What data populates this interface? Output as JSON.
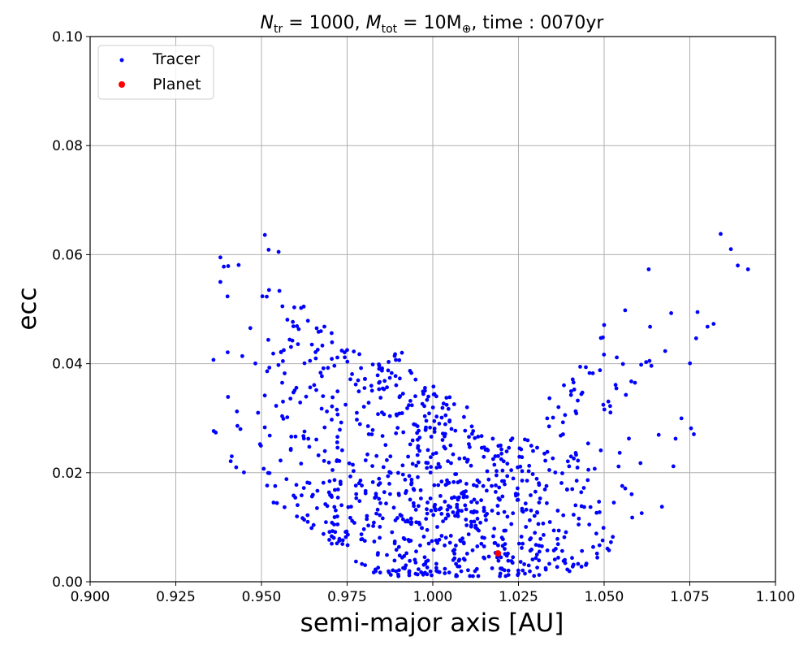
{
  "chart_data": {
    "type": "scatter",
    "title": "N_tr = 1000, M_tot = 10M⊕, time : 0070yr",
    "title_parts": {
      "n": "N",
      "n_sub": "tr",
      "eq1": " = 1000, ",
      "m": "M",
      "m_sub": "tot",
      "eq2": " = 10M",
      "earth": "⊕",
      "rest": ", time : 0070yr"
    },
    "xlabel": "semi-major axis [AU]",
    "ylabel": "ecc",
    "xlim": [
      0.9,
      1.1
    ],
    "ylim": [
      0.0,
      0.1
    ],
    "xticks": [
      "0.900",
      "0.925",
      "0.950",
      "0.975",
      "1.000",
      "1.025",
      "1.050",
      "1.075",
      "1.100"
    ],
    "yticks": [
      "0.00",
      "0.02",
      "0.04",
      "0.06",
      "0.08",
      "0.10"
    ],
    "grid": true,
    "legend_position": "top-left",
    "series": [
      {
        "name": "Tracer",
        "color": "#0000ff",
        "count": 1000,
        "envelope": [
          {
            "a": 0.936,
            "e_max": 0.041
          },
          {
            "a": 0.94,
            "e_max": 0.06
          },
          {
            "a": 0.95,
            "e_max": 0.064
          },
          {
            "a": 0.96,
            "e_max": 0.052
          },
          {
            "a": 0.97,
            "e_max": 0.046
          },
          {
            "a": 0.98,
            "e_max": 0.042
          },
          {
            "a": 0.99,
            "e_max": 0.042
          },
          {
            "a": 1.0,
            "e_max": 0.036
          },
          {
            "a": 1.01,
            "e_max": 0.032
          },
          {
            "a": 1.02,
            "e_max": 0.026
          },
          {
            "a": 1.03,
            "e_max": 0.028
          },
          {
            "a": 1.04,
            "e_max": 0.042
          },
          {
            "a": 1.05,
            "e_max": 0.047
          },
          {
            "a": 1.06,
            "e_max": 0.057
          },
          {
            "a": 1.07,
            "e_max": 0.055
          },
          {
            "a": 1.08,
            "e_max": 0.064
          },
          {
            "a": 1.092,
            "e_max": 0.057
          }
        ],
        "sample_points": [
          {
            "x": 0.936,
            "y": 0.0407
          },
          {
            "x": 0.938,
            "y": 0.0595
          },
          {
            "x": 0.939,
            "y": 0.0578
          },
          {
            "x": 0.938,
            "y": 0.055
          },
          {
            "x": 0.951,
            "y": 0.0636
          },
          {
            "x": 0.955,
            "y": 0.0605
          },
          {
            "x": 1.084,
            "y": 0.0638
          },
          {
            "x": 1.087,
            "y": 0.061
          },
          {
            "x": 1.089,
            "y": 0.058
          },
          {
            "x": 1.092,
            "y": 0.0573
          },
          {
            "x": 1.063,
            "y": 0.0573
          },
          {
            "x": 1.05,
            "y": 0.0471
          },
          {
            "x": 1.01,
            "y": 0.032
          },
          {
            "x": 0.991,
            "y": 0.042
          },
          {
            "x": 0.949,
            "y": 0.031
          }
        ]
      },
      {
        "name": "Planet",
        "color": "#ff0000",
        "points": [
          {
            "x": 1.019,
            "y": 0.0052
          }
        ]
      }
    ]
  }
}
